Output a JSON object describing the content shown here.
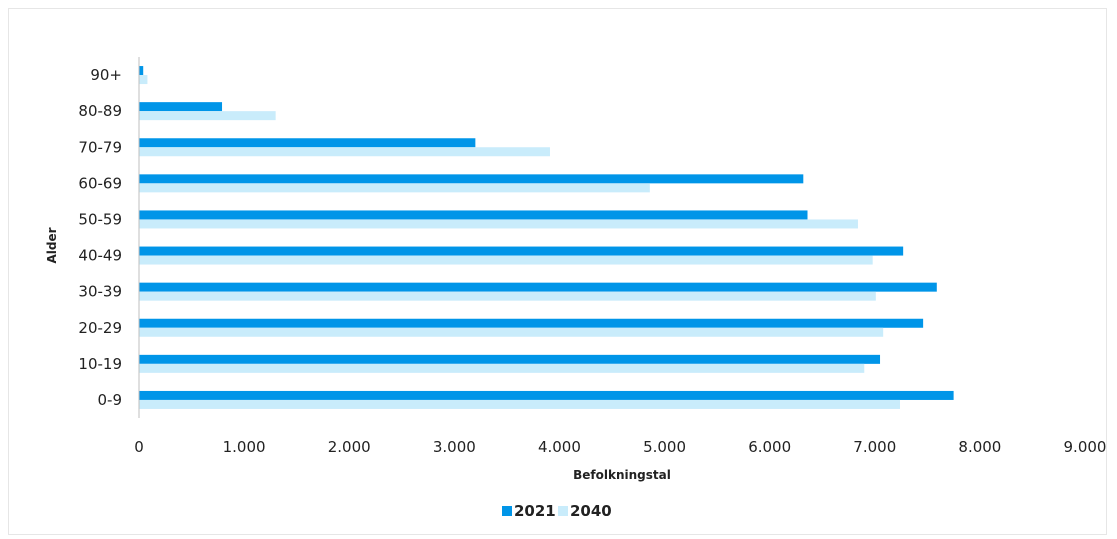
{
  "chart_data": {
    "type": "bar",
    "orientation": "horizontal",
    "categories": [
      "0-9",
      "10-19",
      "20-29",
      "30-39",
      "40-49",
      "50-59",
      "60-69",
      "70-79",
      "80-89",
      "90+"
    ],
    "series": [
      {
        "name": "2021",
        "color": "#0095e8",
        "values": [
          7750,
          7050,
          7460,
          7590,
          7270,
          6360,
          6320,
          3200,
          790,
          40
        ]
      },
      {
        "name": "2040",
        "color": "#c9ecfb",
        "values": [
          7240,
          6900,
          7080,
          7010,
          6980,
          6840,
          4860,
          3910,
          1300,
          80
        ]
      }
    ],
    "xlim": [
      0,
      9000
    ],
    "x_ticks": [
      "0",
      "1.000",
      "2.000",
      "3.000",
      "4.000",
      "5.000",
      "6.000",
      "7.000",
      "8.000",
      "9.000"
    ],
    "xlabel": "Befolkningstal",
    "ylabel": "Alder",
    "legend_position": "bottom",
    "grid": false
  }
}
